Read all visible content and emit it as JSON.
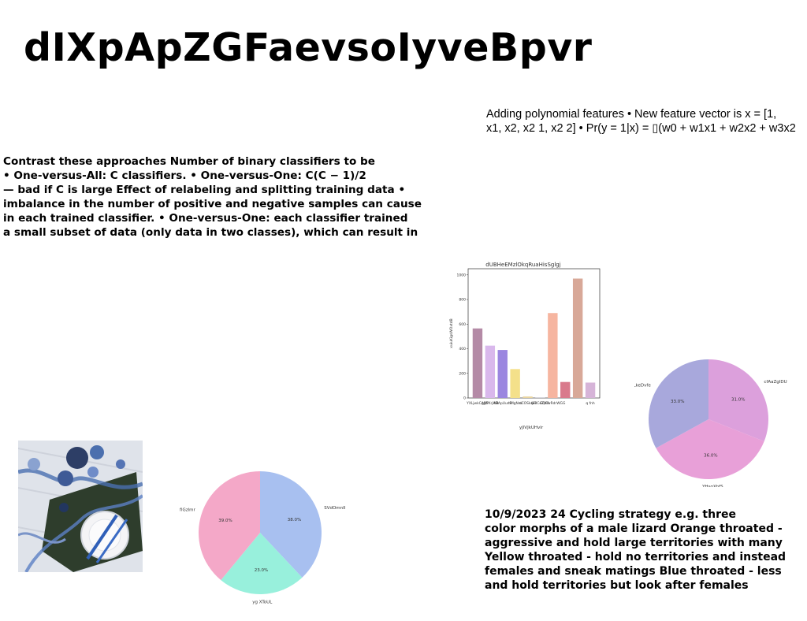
{
  "title": "dIXpApZGFaevsoIyveBpvr",
  "poly_text": {
    "lines": [
      "Adding polynomial features • New feature vector is x = [1,",
      "x1, x2, x2 1, x2 2] • Pr(y = 1|x) = ▯(w0 + w1x1 + w2x2 + w3x2"
    ]
  },
  "contrast_text": {
    "lines": [
      "Contrast these approaches Number of binary classifiers to be",
      "• One-versus-All: C classifiers. • One-versus-One: C(C − 1)/2",
      "— bad if C is large Effect of relabeling and splitting training data •",
      "imbalance in the number of positive and negative samples can cause",
      "in each trained classifier. • One-versus-One: each classifier trained",
      "a small subset of data (only data in two classes), which can result in"
    ]
  },
  "lizard_text": {
    "lines": [
      "10/9/2023 24 Cycling strategy e.g. three",
      "color morphs of a male lizard Orange throated -",
      "aggressive and hold large territories with many",
      "Yellow throated - hold no territories and instead",
      "females and sneak matings Blue throated - less",
      "and hold territories but look after females"
    ]
  },
  "photo": {
    "subject": "table setting with blue ornaments"
  },
  "chart_data": [
    {
      "type": "bar",
      "title": "dUBHeEMzlOkqRuaHisSglgj",
      "xlabel": "yJlVJkUHvlr",
      "ylabel": "xuiuKigsWOxtdB",
      "ylim": [
        0,
        1050
      ],
      "yticks": [
        0,
        200,
        400,
        600,
        800,
        1000
      ],
      "categories": [
        "YXLjwkCAQP",
        "WXrjiKB",
        "ABApUun",
        "hMgNm",
        "dCOSkqFr",
        "fuBCeZHOQ",
        "YOwRdrWGG",
        "q fnh",
        "",
        ""
      ],
      "tick_labels": [
        "YXLjwkCAQP",
        "gJWXrjiKB",
        "ABApUunR",
        "hMgNm",
        "dCOSkqFr",
        "fuBCeZHO",
        "EQOwRdrWGG",
        "q fnh"
      ],
      "values": [
        565,
        425,
        390,
        235,
        12,
        5,
        690,
        130,
        970,
        125
      ],
      "colors": [
        "#b48aa6",
        "#d9b8ec",
        "#9b86e0",
        "#f4e08a",
        "#e9d49e",
        "#c8c8d0",
        "#f6b5a0",
        "#d97a8c",
        "#d8a898",
        "#d6b4d8"
      ]
    },
    {
      "type": "pie",
      "labels": [
        "cfAaZgIDU",
        "YHsgXhfS",
        "QjqLkeDvfe"
      ],
      "values": [
        31.0,
        36.0,
        33.0
      ],
      "pct_labels": [
        "31.0%",
        "36.0%",
        "33.0%"
      ],
      "colors": [
        "#dca0dc",
        "#e8a0d8",
        "#a8a8dc"
      ]
    },
    {
      "type": "pie",
      "labels": [
        "SVdOmnII",
        "yg XToUL",
        "LjifiGzlmr"
      ],
      "values": [
        38.0,
        23.0,
        39.0
      ],
      "pct_labels": [
        "38.0%",
        "23.0%",
        "39.0%"
      ],
      "colors": [
        "#a8c0f0",
        "#98f0dc",
        "#f4a8c8"
      ]
    }
  ]
}
